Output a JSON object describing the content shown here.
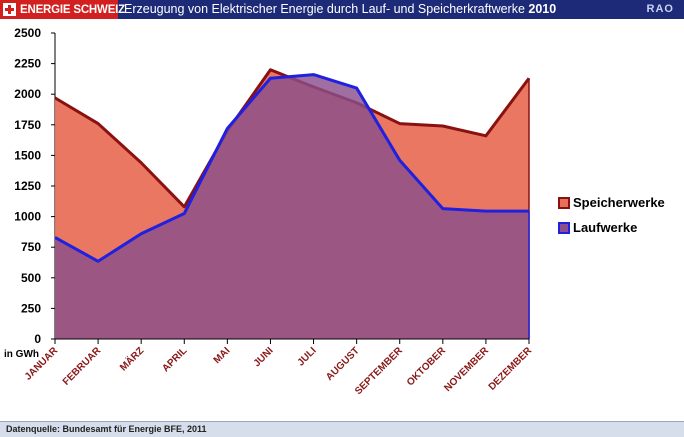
{
  "header": {
    "brand": "ENERGIE SCHWEIZ",
    "title": "Erzeugung von  Elektrischer Energie durch Lauf- und Speicherkraftwerke",
    "year": "2010",
    "tag": "RAO"
  },
  "footer": {
    "source": "Datenquelle: Bundesamt für Energie BFE, 2011"
  },
  "colors": {
    "header_bg": "#1c2a78",
    "brand_bg": "#d21f1f",
    "speicher_fill": "#e8705a",
    "speicher_line": "#8b1010",
    "lauf_fill": "#8a4f8c",
    "lauf_line": "#2020e0",
    "tick_x": "#8a1818"
  },
  "chart_data": {
    "type": "area",
    "categories": [
      "JANUAR",
      "FEBRUAR",
      "MÄRZ",
      "APRIL",
      "MAI",
      "JUNI",
      "JULI",
      "AUGUST",
      "SEPTEMBER",
      "OKTOBER",
      "NOVEMBER",
      "DEZEMBER"
    ],
    "series": [
      {
        "name": "Speicherwerke",
        "values": [
          1970,
          1760,
          1440,
          1080,
          1700,
          2200,
          2060,
          1930,
          1760,
          1740,
          1660,
          2130
        ]
      },
      {
        "name": "Laufwerke",
        "values": [
          830,
          635,
          860,
          1025,
          1720,
          2130,
          2160,
          2050,
          1460,
          1065,
          1045,
          1045
        ]
      }
    ],
    "ylim": [
      0,
      2500
    ],
    "yticks": [
      0,
      250,
      500,
      750,
      1000,
      1250,
      1500,
      1750,
      2000,
      2250,
      2500
    ],
    "ylabel": "in GWh",
    "grid": false,
    "legend_position": "right"
  }
}
